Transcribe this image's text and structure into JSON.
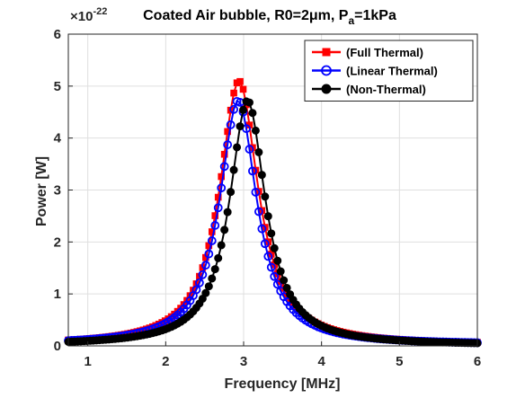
{
  "chart_data": {
    "type": "line",
    "title": "Coated Air bubble, R0=2μm, P",
    "title_subscript": "a",
    "title_suffix": "=1kPa",
    "xlabel": "Frequency [MHz]",
    "ylabel": "Power [W]",
    "y_exponent_base": "×10",
    "y_exponent_power": "-22",
    "xlim": [
      0.75,
      6
    ],
    "ylim": [
      0,
      6
    ],
    "x_ticks": [
      1,
      2,
      3,
      4,
      5,
      6
    ],
    "x_tick_labels": [
      "1",
      "2",
      "3",
      "4",
      "5",
      "6"
    ],
    "y_ticks": [
      0,
      1,
      2,
      3,
      4,
      5,
      6
    ],
    "y_tick_labels": [
      "0",
      "1",
      "2",
      "3",
      "4",
      "5",
      "6"
    ],
    "grid": true,
    "legend_position": "top-right",
    "x_scale": "linear",
    "y_scale": "linear",
    "series": [
      {
        "name": "(Full Thermal)",
        "color": "#ff0000",
        "marker": "square",
        "peak_frequency": 2.94,
        "peak_power": 5.1,
        "width": 0.3,
        "baseline": 0.02
      },
      {
        "name": "(Linear Thermal)",
        "color": "#0000ff",
        "marker": "circle-open",
        "peak_frequency": 2.93,
        "peak_power": 4.72,
        "width": 0.29,
        "baseline": 0.02
      },
      {
        "name": "(Non-Thermal)",
        "color": "#000000",
        "marker": "circle-filled",
        "peak_frequency": 3.05,
        "peak_power": 4.72,
        "width": 0.28,
        "baseline": 0.01
      }
    ]
  }
}
